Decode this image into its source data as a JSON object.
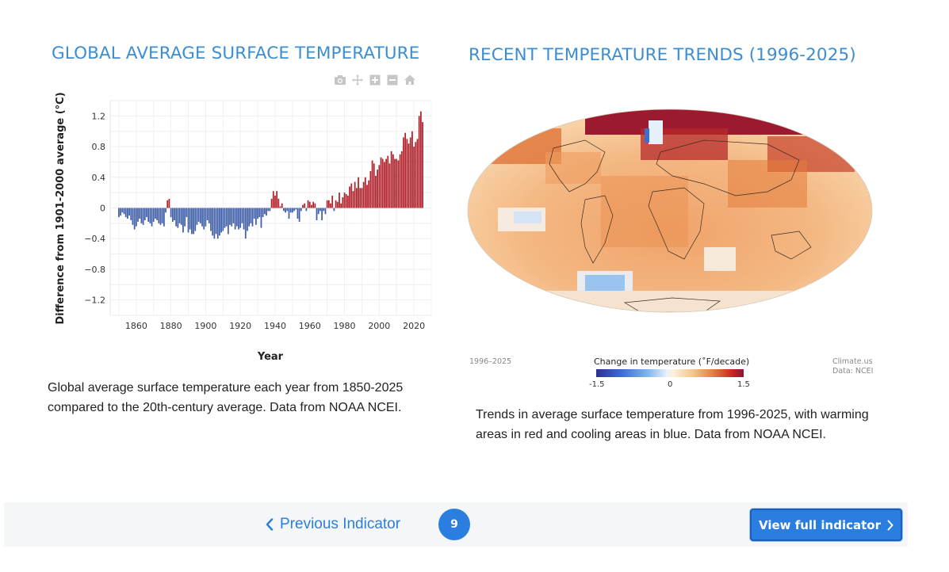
{
  "left_panel": {
    "title": "GLOBAL AVERAGE SURFACE TEMPERATURE",
    "caption": "Global average surface temperature each year from 1850-2025 compared to the 20th-century average. Data from NOAA NCEI.",
    "modebar": [
      "camera-icon",
      "pan-icon",
      "zoom-in-icon",
      "zoom-out-icon",
      "home-icon"
    ]
  },
  "right_panel": {
    "title": "RECENT TEMPERATURE TRENDS (1996-2025)",
    "caption": "Trends in average surface temperature from 1996-2025, with warming areas in red and cooling areas in blue. Data from NOAA NCEI.",
    "map": {
      "period": "1996–2025",
      "legend_title": "Change in temperature (˚F/decade)",
      "legend_ticks": [
        "-1.5",
        "0",
        "1.5"
      ],
      "credit_line1": "Climate.us",
      "credit_line2": "Data: NCEI"
    }
  },
  "nav": {
    "previous_label": "Previous Indicator",
    "page_number": "9",
    "view_full_label": "View full indicator"
  },
  "colors": {
    "accent": "#2a7ee0",
    "title": "#3d8ed0",
    "bar_negative": "#3f5ea8",
    "bar_positive": "#b0202a"
  },
  "chart_data": {
    "type": "bar",
    "title": "",
    "xlabel": "Year",
    "ylabel": "Difference from 1901-2000 average (°C)",
    "xlim": [
      1845,
      2030
    ],
    "ylim": [
      -1.4,
      1.4
    ],
    "x_ticks": [
      1860,
      1880,
      1900,
      1920,
      1940,
      1960,
      1980,
      2000,
      2020
    ],
    "y_ticks": [
      1.2,
      0.8,
      0.4,
      0,
      -0.4,
      -0.8,
      -1.2
    ],
    "y_tick_labels": [
      "1.2",
      "0.8",
      "0.4",
      "0",
      "−0.4",
      "−0.8",
      "−1.2"
    ],
    "grid": true,
    "start_year": 1850,
    "values": [
      -0.12,
      -0.1,
      -0.06,
      -0.08,
      -0.12,
      -0.14,
      -0.1,
      -0.16,
      -0.22,
      -0.28,
      -0.24,
      -0.18,
      -0.14,
      -0.2,
      -0.22,
      -0.16,
      -0.12,
      -0.18,
      -0.2,
      -0.24,
      -0.18,
      -0.14,
      -0.16,
      -0.2,
      -0.22,
      -0.2,
      -0.24,
      -0.06,
      0.1,
      0.12,
      -0.12,
      -0.18,
      -0.16,
      -0.24,
      -0.26,
      -0.2,
      -0.22,
      -0.32,
      -0.24,
      -0.12,
      -0.32,
      -0.28,
      -0.34,
      -0.34,
      -0.3,
      -0.22,
      -0.18,
      -0.2,
      -0.24,
      -0.28,
      -0.24,
      -0.16,
      -0.2,
      -0.3,
      -0.36,
      -0.4,
      -0.34,
      -0.4,
      -0.36,
      -0.32,
      -0.3,
      -0.26,
      -0.24,
      -0.34,
      -0.22,
      -0.24,
      -0.2,
      -0.28,
      -0.24,
      -0.28,
      -0.26,
      -0.2,
      -0.28,
      -0.4,
      -0.3,
      -0.24,
      -0.2,
      -0.24,
      -0.14,
      -0.22,
      -0.14,
      -0.12,
      -0.26,
      -0.12,
      -0.08,
      -0.1,
      -0.04,
      -0.04,
      0.12,
      0.22,
      0.16,
      0.22,
      0.12,
      0.02,
      0.06,
      -0.04,
      -0.06,
      -0.04,
      -0.14,
      -0.06,
      -0.06,
      -0.04,
      -0.02,
      -0.14,
      -0.18,
      -0.04,
      0.04,
      0.06,
      -0.04,
      0.1,
      0.08,
      0.04,
      0.08,
      0.06,
      -0.16,
      -0.08,
      -0.04,
      -0.16,
      -0.04,
      -0.08,
      0.1,
      0.1,
      0.06,
      0.16,
      -0.04,
      0.1,
      0.08,
      0.2,
      0.06,
      0.14,
      0.2,
      0.18,
      0.16,
      0.28,
      0.32,
      0.22,
      0.34,
      0.26,
      0.4,
      0.26,
      0.26,
      0.34,
      0.4,
      0.3,
      0.36,
      0.48,
      0.62,
      0.58,
      0.42,
      0.5,
      0.56,
      0.66,
      0.64,
      0.6,
      0.64,
      0.68,
      0.58,
      0.74,
      0.7,
      0.64,
      0.64,
      0.62,
      0.7,
      0.74,
      0.92,
      0.98,
      0.9,
      0.84,
      0.92,
      1.0,
      0.8,
      0.86,
      0.9,
      1.2,
      1.26,
      1.12
    ]
  }
}
